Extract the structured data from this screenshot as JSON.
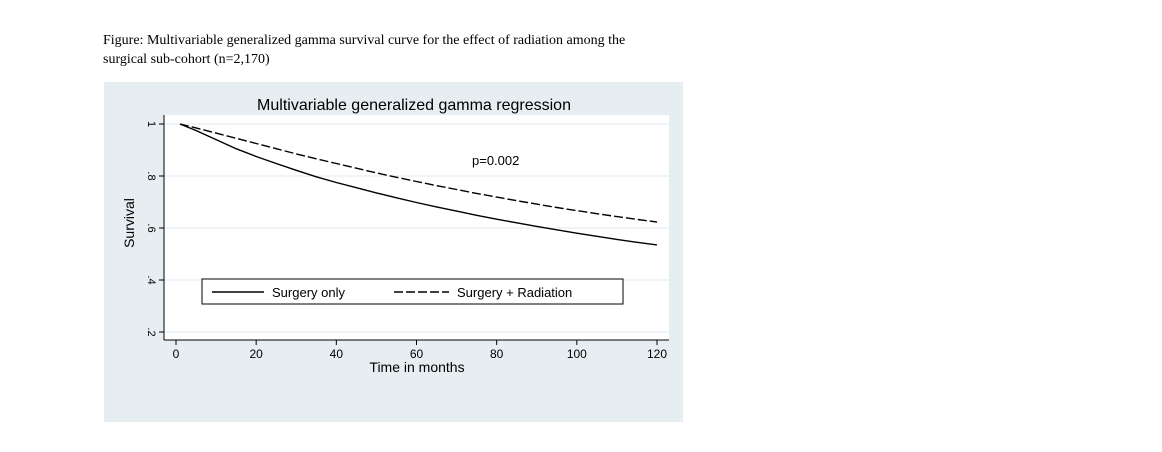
{
  "caption": {
    "line1": "Figure: Multivariable generalized gamma survival curve for the effect of radiation among the",
    "line2": "surgical sub-cohort (n=2,170)"
  },
  "colors": {
    "panel_background": "#e7eef2",
    "plot_background": "#ffffff",
    "gridline": "#e1e8ec",
    "line": "#000000"
  },
  "chart_data": {
    "type": "line",
    "title": "Multivariable generalized gamma regression",
    "xlabel": "Time in months",
    "ylabel": "Survival",
    "xlim": [
      0,
      120
    ],
    "ylim": [
      0.2,
      1
    ],
    "x_ticks": [
      0,
      20,
      40,
      60,
      80,
      100,
      120
    ],
    "x_tick_labels": [
      "0",
      "20",
      "40",
      "60",
      "80",
      "100",
      "120"
    ],
    "y_ticks": [
      0.2,
      0.4,
      0.6,
      0.8,
      1
    ],
    "y_tick_labels": [
      ".2",
      ".4",
      ".6",
      ".8",
      "1"
    ],
    "grid": true,
    "legend_position": "bottom-inside",
    "annotation": "p=0.002",
    "x": [
      1,
      5,
      10,
      15,
      20,
      25,
      30,
      35,
      40,
      45,
      50,
      55,
      60,
      65,
      70,
      75,
      80,
      85,
      90,
      95,
      100,
      105,
      110,
      115,
      120
    ],
    "series": [
      {
        "name": "Surgery only",
        "style": "solid",
        "values": [
          1.0,
          0.975,
          0.94,
          0.905,
          0.875,
          0.848,
          0.822,
          0.797,
          0.775,
          0.755,
          0.735,
          0.716,
          0.698,
          0.681,
          0.665,
          0.649,
          0.634,
          0.62,
          0.606,
          0.593,
          0.58,
          0.568,
          0.556,
          0.545,
          0.535
        ]
      },
      {
        "name": "Surgery + Radiation",
        "style": "dashed",
        "values": [
          1.0,
          0.985,
          0.965,
          0.945,
          0.925,
          0.905,
          0.885,
          0.866,
          0.848,
          0.83,
          0.812,
          0.795,
          0.779,
          0.763,
          0.748,
          0.733,
          0.719,
          0.705,
          0.692,
          0.679,
          0.667,
          0.655,
          0.644,
          0.633,
          0.623
        ]
      }
    ]
  }
}
